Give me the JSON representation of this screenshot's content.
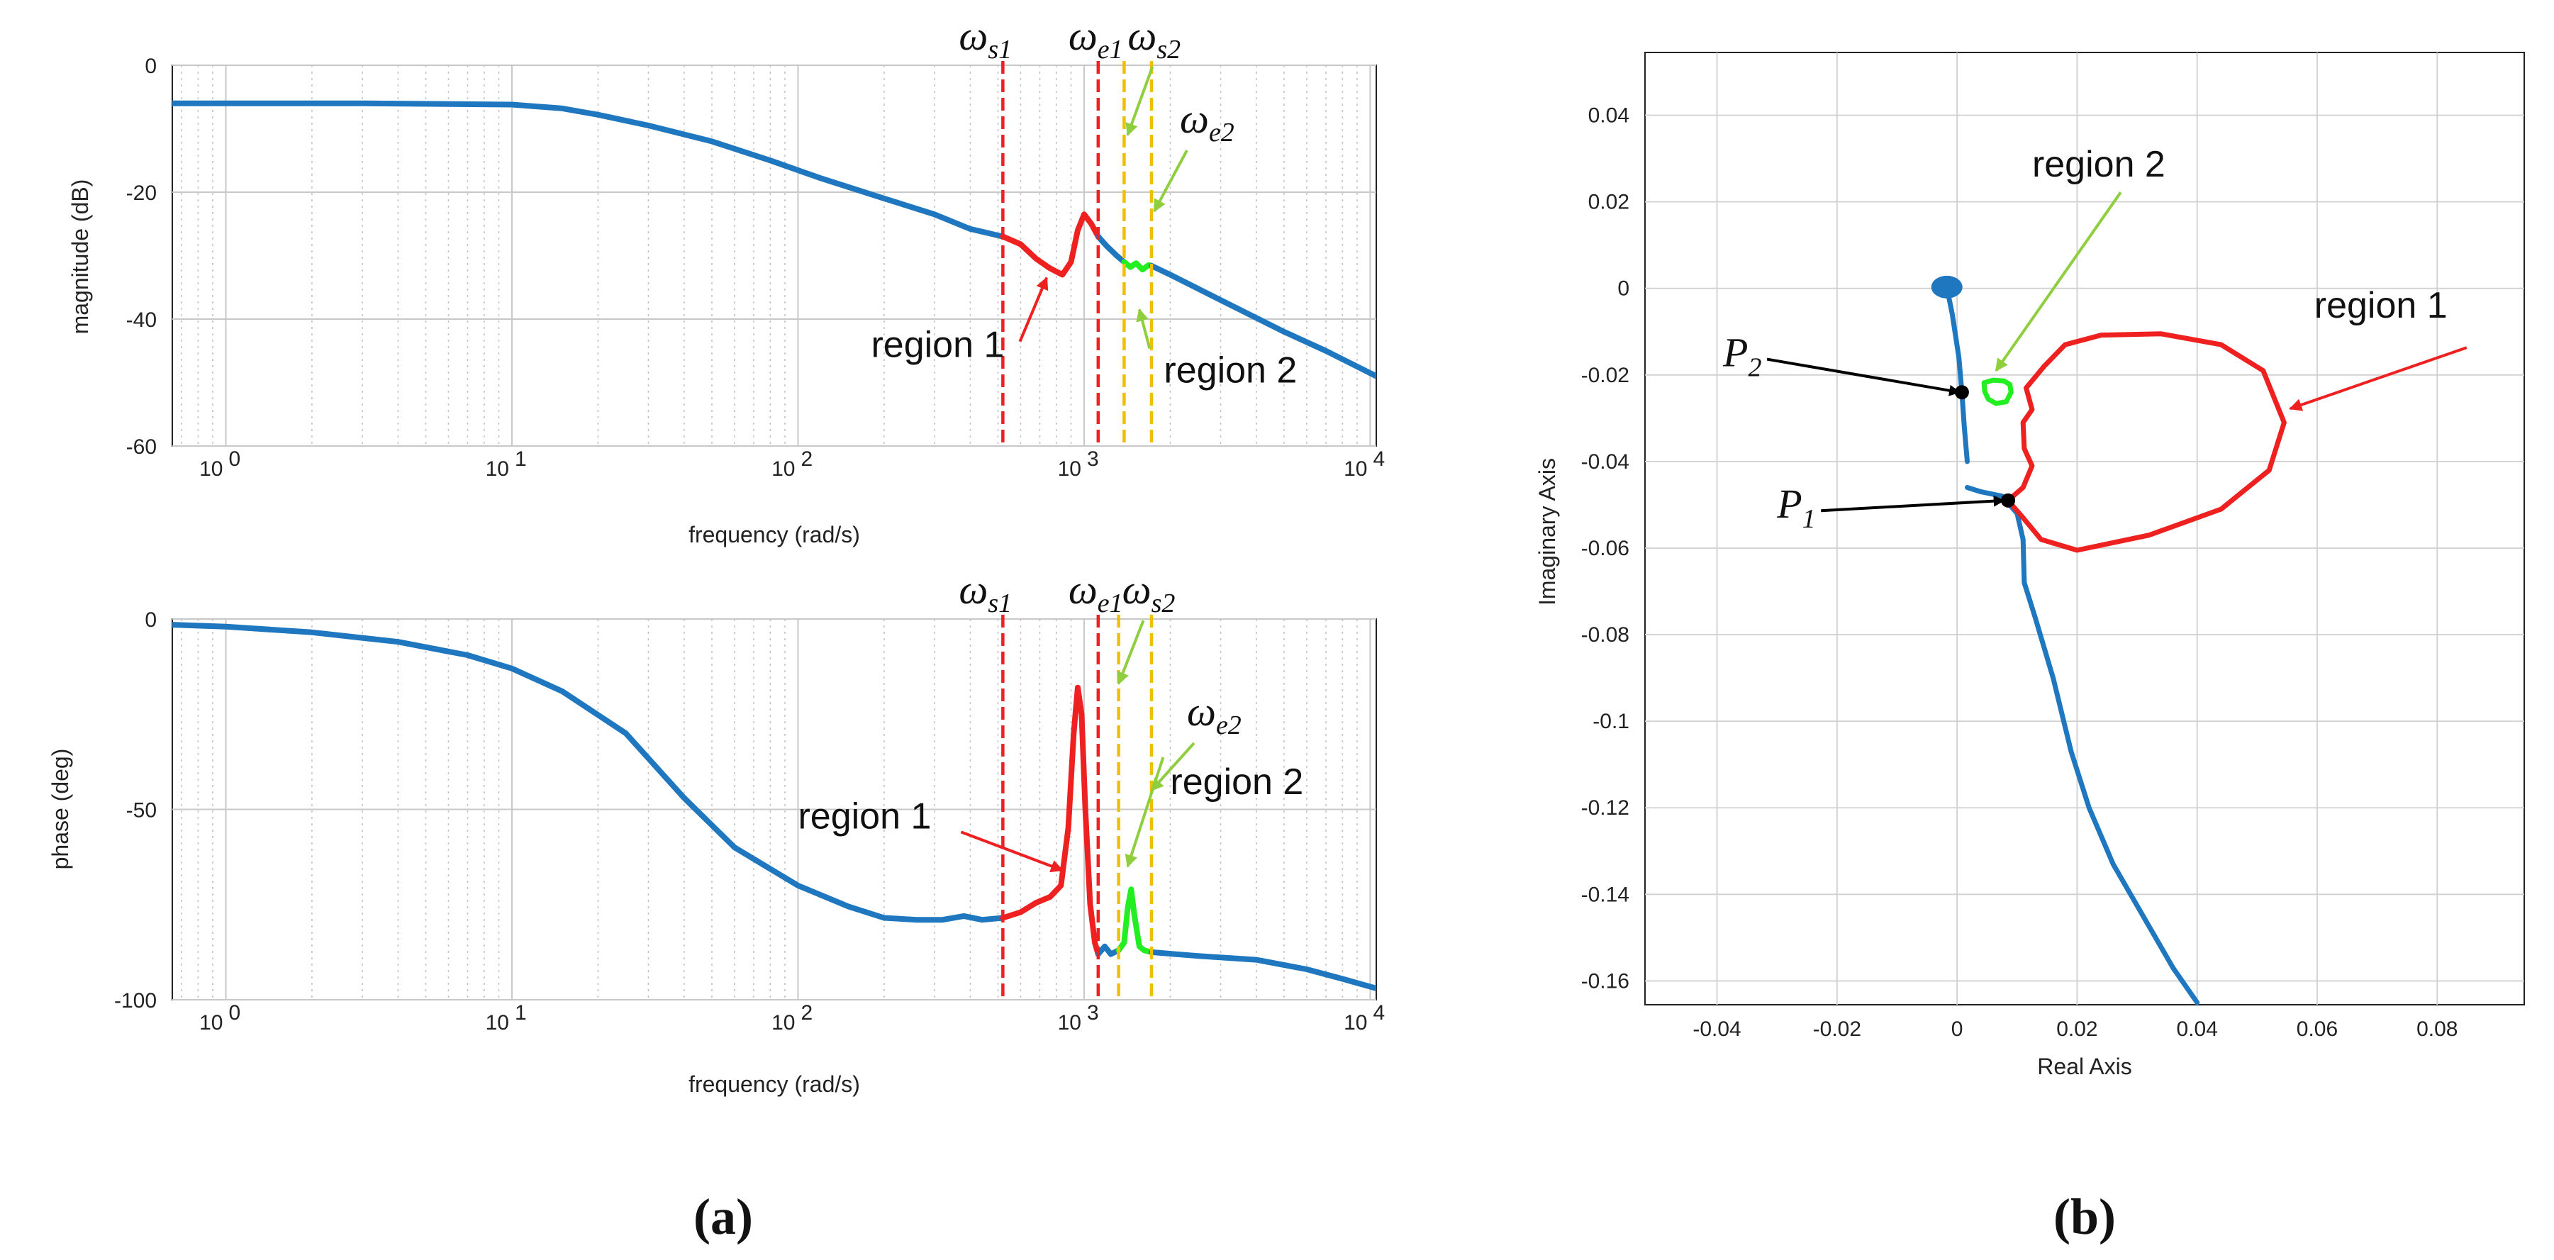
{
  "colors": {
    "nominal": "#1f77c0",
    "region1": "#ee2020",
    "region2": "#22ee22",
    "ws_line": "#ee2020",
    "we_line": "#f0c000",
    "grid": "#bbbbbb",
    "arrow_black": "#000000",
    "arrow_green": "#8fce3f",
    "arrow_red": "#ee2020"
  },
  "labels": {
    "pane_a": "(a)",
    "pane_b": "(b)",
    "omega": "ω",
    "sub_s1": "s1",
    "sub_e1": "e1",
    "sub_s2": "s2",
    "sub_e2": "e2",
    "region1": "region 1",
    "region2": "region 2",
    "p_letter": "P",
    "p1_sub": "1",
    "p2_sub": "2"
  },
  "chart_data": [
    {
      "type": "line",
      "id": "magnitude",
      "title": "",
      "xlabel": "frequency (rad/s)",
      "ylabel": "magnitude (dB)",
      "xscale": "log",
      "xlim": [
        0.65,
        10500
      ],
      "ylim": [
        -60,
        0
      ],
      "yticks": [
        0,
        -20,
        -40,
        -60
      ],
      "ytick_labels": [
        "0",
        "-20",
        "-40",
        "-60"
      ],
      "xtick_bases": [
        "10",
        "10",
        "10",
        "10",
        "10"
      ],
      "xtick_exps": [
        "0",
        "1",
        "2",
        "3",
        "4"
      ],
      "xtick_values": [
        1,
        10,
        100,
        1000,
        10000
      ],
      "vlines": {
        "ws1": 520,
        "we1": 1120,
        "ws2": 1380,
        "we2": 1720
      },
      "series": [
        {
          "name": "nominal",
          "color_key": "nominal",
          "x": [
            0.65,
            1,
            3,
            10,
            15,
            20,
            30,
            50,
            80,
            120,
            200,
            300,
            400,
            520
          ],
          "y": [
            -6,
            -6,
            -6,
            -6.2,
            -6.8,
            -7.8,
            -9.5,
            -12,
            -15,
            -17.8,
            -21,
            -23.5,
            -25.8,
            -27
          ]
        },
        {
          "name": "region 1",
          "color_key": "region1",
          "x": [
            520,
            600,
            680,
            760,
            840,
            900,
            950,
            1000,
            1060,
            1120
          ],
          "y": [
            -27,
            -28.2,
            -30.5,
            -32,
            -33,
            -31,
            -26,
            -23.5,
            -25,
            -27
          ]
        },
        {
          "name": "nominal-2",
          "color_key": "nominal",
          "x": [
            1120,
            1200,
            1300,
            1380
          ],
          "y": [
            -27,
            -28.5,
            -30,
            -31
          ]
        },
        {
          "name": "region 2",
          "color_key": "region2",
          "x": [
            1380,
            1450,
            1520,
            1600,
            1680,
            1720
          ],
          "y": [
            -31,
            -31.8,
            -31.2,
            -32.2,
            -31.5,
            -31.6
          ]
        },
        {
          "name": "nominal-3",
          "color_key": "nominal",
          "x": [
            1720,
            2000,
            3000,
            5000,
            7000,
            10500
          ],
          "y": [
            -31.6,
            -33,
            -37,
            -42,
            -45,
            -49
          ]
        }
      ],
      "annotations": {
        "region1_text_at": [
          180,
          -46
        ],
        "region1_arrow_to": [
          740,
          -33.5
        ],
        "region2_text_at": [
          1900,
          -50
        ],
        "region2_arrow_to": [
          1560,
          -38.5
        ],
        "ws2_arrow_to": [
          1420,
          -11
        ],
        "we2_arrow_to": [
          1760,
          -23
        ]
      }
    },
    {
      "type": "line",
      "id": "phase",
      "title": "",
      "xlabel": "frequency (rad/s)",
      "ylabel": "phase (deg)",
      "xscale": "log",
      "xlim": [
        0.65,
        10500
      ],
      "ylim": [
        -100,
        0
      ],
      "yticks": [
        0,
        -50,
        -100
      ],
      "ytick_labels": [
        "0",
        "-50",
        "-100"
      ],
      "xtick_bases": [
        "10",
        "10",
        "10",
        "10",
        "10"
      ],
      "xtick_exps": [
        "0",
        "1",
        "2",
        "3",
        "4"
      ],
      "xtick_values": [
        1,
        10,
        100,
        1000,
        10000
      ],
      "vlines": {
        "ws1": 520,
        "we1": 1120,
        "ws2": 1320,
        "we2": 1720
      },
      "series": [
        {
          "name": "nominal",
          "color_key": "nominal",
          "x": [
            0.65,
            1,
            2,
            4,
            7,
            10,
            15,
            25,
            40,
            60,
            100,
            150,
            200,
            260,
            320,
            380,
            440,
            520
          ],
          "y": [
            -1.5,
            -2,
            -3.5,
            -6,
            -9.5,
            -13,
            -19,
            -30,
            -47,
            -60,
            -70,
            -75.5,
            -78.5,
            -79,
            -79,
            -78,
            -79,
            -78.5
          ]
        },
        {
          "name": "region 1",
          "color_key": "region1",
          "x": [
            520,
            600,
            680,
            760,
            830,
            880,
            920,
            950,
            980,
            1010,
            1050,
            1090,
            1120
          ],
          "y": [
            -78.5,
            -77,
            -74.5,
            -73,
            -70,
            -55,
            -30,
            -18,
            -25,
            -50,
            -75,
            -85,
            -88
          ]
        },
        {
          "name": "nominal-2",
          "color_key": "nominal",
          "x": [
            1120,
            1180,
            1240,
            1320
          ],
          "y": [
            -88,
            -86,
            -88,
            -87
          ]
        },
        {
          "name": "region 2",
          "color_key": "region2",
          "x": [
            1320,
            1380,
            1420,
            1460,
            1500,
            1560,
            1620,
            1720
          ],
          "y": [
            -87,
            -85,
            -76,
            -71,
            -78,
            -86,
            -87,
            -87.5
          ]
        },
        {
          "name": "nominal-3",
          "color_key": "nominal",
          "x": [
            1720,
            2500,
            4000,
            6000,
            8000,
            10500
          ],
          "y": [
            -87.5,
            -88.5,
            -89.5,
            -92,
            -94.5,
            -97
          ]
        }
      ],
      "annotations": {
        "region1_text_at": [
          100,
          -55
        ],
        "region1_arrow_to": [
          840,
          -66
        ],
        "region2_text_at": [
          2000,
          -46
        ],
        "region2_arrow_to": [
          1420,
          -65
        ],
        "ws2_arrow_to": [
          1320,
          -17
        ],
        "we2_arrow_to": [
          1720,
          -45
        ]
      }
    },
    {
      "type": "line",
      "id": "nyquist",
      "title": "",
      "xlabel": "Real Axis",
      "ylabel": "Imaginary Axis",
      "xlim": [
        -0.052,
        0.0945
      ],
      "ylim": [
        -0.1655,
        0.0545
      ],
      "xticks": [
        -0.04,
        -0.02,
        0,
        0.02,
        0.04,
        0.06,
        0.08
      ],
      "xtick_labels": [
        "-0.04",
        "-0.02",
        "0",
        "0.02",
        "0.04",
        "0.06",
        "0.08"
      ],
      "yticks": [
        0.04,
        0.02,
        0,
        -0.02,
        -0.04,
        -0.06,
        -0.08,
        -0.1,
        -0.12,
        -0.14,
        -0.16
      ],
      "ytick_labels": [
        "0.04",
        "0.02",
        "0",
        "-0.02",
        "-0.04",
        "-0.06",
        "-0.08",
        "-0.1",
        "-0.12",
        "-0.14",
        "-0.16"
      ],
      "series": [
        {
          "name": "nominal-stem",
          "color_key": "nominal",
          "x": [
            -0.0016,
            -0.0008,
            0.0003,
            0.0008,
            0.0012,
            0.0017
          ],
          "y": [
            -0.0005,
            -0.006,
            -0.016,
            -0.024,
            -0.032,
            -0.04
          ]
        },
        {
          "name": "nominal-low",
          "color_key": "nominal",
          "x": [
            0.0017,
            0.004,
            0.0075,
            0.01,
            0.011,
            0.0112,
            0.013,
            0.016,
            0.019,
            0.022,
            0.026,
            0.031,
            0.036,
            0.04
          ],
          "y": [
            -0.046,
            -0.047,
            -0.048,
            -0.052,
            -0.058,
            -0.068,
            -0.076,
            -0.09,
            -0.107,
            -0.12,
            -0.133,
            -0.145,
            -0.157,
            -0.165
          ]
        },
        {
          "name": "region 1",
          "color_key": "region1",
          "x": [
            0.0085,
            0.011,
            0.0125,
            0.0112,
            0.011,
            0.0125,
            0.0115,
            0.0145,
            0.018,
            0.024,
            0.034,
            0.044,
            0.051,
            0.0545,
            0.052,
            0.044,
            0.032,
            0.02,
            0.014,
            0.011,
            0.0085
          ],
          "y": [
            -0.049,
            -0.046,
            -0.041,
            -0.037,
            -0.031,
            -0.028,
            -0.023,
            -0.018,
            -0.013,
            -0.0108,
            -0.0105,
            -0.013,
            -0.019,
            -0.031,
            -0.042,
            -0.051,
            -0.057,
            -0.0605,
            -0.058,
            -0.053,
            -0.049
          ]
        },
        {
          "name": "region 2",
          "color_key": "region2",
          "x": [
            0.0045,
            0.006,
            0.0078,
            0.0088,
            0.009,
            0.0082,
            0.0065,
            0.0052,
            0.0046,
            0.0045
          ],
          "y": [
            -0.0218,
            -0.0212,
            -0.0214,
            -0.0222,
            -0.024,
            -0.0262,
            -0.0266,
            -0.0256,
            -0.0238,
            -0.0218
          ]
        }
      ],
      "points": {
        "P1": {
          "x": 0.0085,
          "y": -0.049
        },
        "P2": {
          "x": 0.0008,
          "y": -0.024
        },
        "blob": {
          "x": -0.0017,
          "y": 0.0003
        }
      },
      "annotations": {
        "region1_text_at": [
          0.0595,
          -0.0068
        ],
        "region1_arrow_to": [
          0.0555,
          -0.0278
        ],
        "region2_text_at": [
          0.0125,
          0.0258
        ],
        "region2_arrow_to": [
          0.0065,
          -0.019
        ],
        "P2_text_at": [
          -0.039,
          -0.018
        ],
        "P2_arrow_to": [
          0.0004,
          -0.024
        ],
        "P1_text_at": [
          -0.03,
          -0.053
        ],
        "P1_arrow_to": [
          0.0078,
          -0.049
        ]
      }
    }
  ]
}
